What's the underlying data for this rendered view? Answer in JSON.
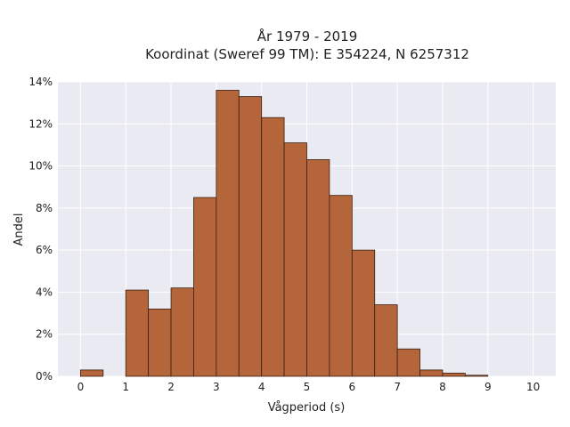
{
  "chart_data": {
    "type": "bar",
    "title_lines": [
      "År 1979 - 2019",
      "Koordinat (Sweref 99 TM): E 354224, N 6257312"
    ],
    "xlabel": "Vågperiod (s)",
    "ylabel": "Andel",
    "xlim": [
      -0.5,
      10.5
    ],
    "ylim": [
      0,
      14
    ],
    "x_ticks": [
      0,
      1,
      2,
      3,
      4,
      5,
      6,
      7,
      8,
      9,
      10
    ],
    "x_tick_labels": [
      "0",
      "1",
      "2",
      "3",
      "4",
      "5",
      "6",
      "7",
      "8",
      "9",
      "10"
    ],
    "y_ticks": [
      0,
      2,
      4,
      6,
      8,
      10,
      12,
      14
    ],
    "y_tick_labels": [
      "0%",
      "2%",
      "4%",
      "6%",
      "8%",
      "10%",
      "12%",
      "14%"
    ],
    "grid": true,
    "bin_width": 0.5,
    "bins": [
      {
        "x0": 0.0,
        "x1": 0.5,
        "value": 0.3
      },
      {
        "x0": 0.5,
        "x1": 1.0,
        "value": 0.0
      },
      {
        "x0": 1.0,
        "x1": 1.5,
        "value": 4.1
      },
      {
        "x0": 1.5,
        "x1": 2.0,
        "value": 3.2
      },
      {
        "x0": 2.0,
        "x1": 2.5,
        "value": 4.2
      },
      {
        "x0": 2.5,
        "x1": 3.0,
        "value": 8.5
      },
      {
        "x0": 3.0,
        "x1": 3.5,
        "value": 13.6
      },
      {
        "x0": 3.5,
        "x1": 4.0,
        "value": 13.3
      },
      {
        "x0": 4.0,
        "x1": 4.5,
        "value": 12.3
      },
      {
        "x0": 4.5,
        "x1": 5.0,
        "value": 11.1
      },
      {
        "x0": 5.0,
        "x1": 5.5,
        "value": 10.3
      },
      {
        "x0": 5.5,
        "x1": 6.0,
        "value": 8.6
      },
      {
        "x0": 6.0,
        "x1": 6.5,
        "value": 6.0
      },
      {
        "x0": 6.5,
        "x1": 7.0,
        "value": 3.4
      },
      {
        "x0": 7.0,
        "x1": 7.5,
        "value": 1.3
      },
      {
        "x0": 7.5,
        "x1": 8.0,
        "value": 0.3
      },
      {
        "x0": 8.0,
        "x1": 8.5,
        "value": 0.15
      },
      {
        "x0": 8.5,
        "x1": 9.0,
        "value": 0.05
      }
    ],
    "bar_color": "#b5653a",
    "bar_edge_color": "#3a2012",
    "plot_background": "#eaeaf2",
    "grid_color": "#ffffff"
  }
}
